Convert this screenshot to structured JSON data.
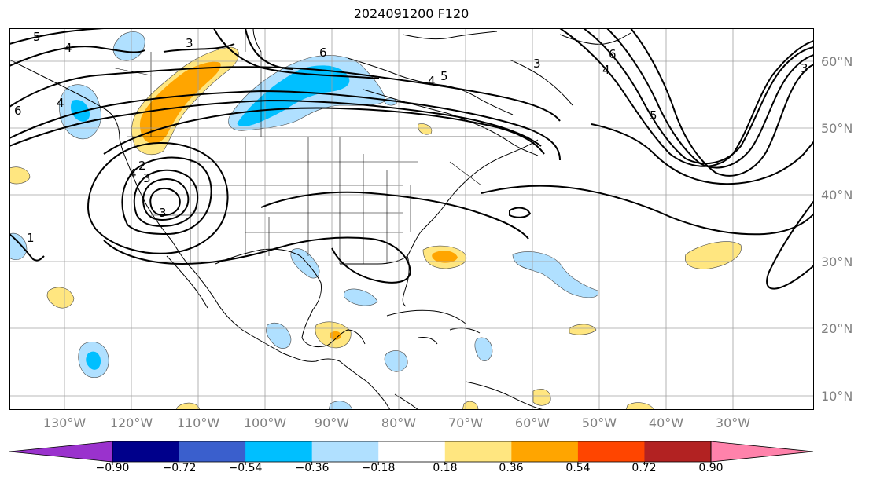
{
  "title": "2024091200 F120",
  "map": {
    "lon_labels": [
      "130°W",
      "120°W",
      "110°W",
      "100°W",
      "90°W",
      "80°W",
      "70°W",
      "60°W",
      "50°W",
      "40°W",
      "30°W"
    ],
    "lat_labels": [
      "60°N",
      "50°N",
      "40°N",
      "30°N",
      "20°N",
      "10°N"
    ],
    "grid": true,
    "contour_labels": [
      "5",
      "4",
      "3",
      "6",
      "4",
      "5",
      "3",
      "6",
      "4",
      "5",
      "3",
      "6",
      "4",
      "2",
      "3",
      "4",
      "3",
      "1"
    ]
  },
  "colorbar": {
    "ticks": [
      "−0.90",
      "−0.72",
      "−0.54",
      "−0.36",
      "−0.18",
      "0.18",
      "0.36",
      "0.54",
      "0.72",
      "0.90"
    ],
    "colors": [
      "#9a32cd",
      "#00008b",
      "#3a5fcd",
      "#00bfff",
      "#b0e0ff",
      "#ffffff",
      "#ffe680",
      "#ffa500",
      "#ff4500",
      "#b22222",
      "#ff82ab"
    ],
    "extend": "both"
  }
}
